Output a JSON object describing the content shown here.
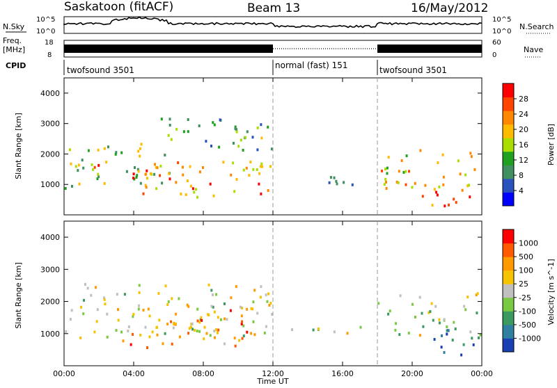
{
  "header": {
    "station": "Saskatoon (fitACF)",
    "beam": "Beam 13",
    "date": "16/May/2012"
  },
  "status_panel": {
    "nsky_label": "N.Sky",
    "nsearch_label": "N.Search",
    "noise_ticks": [
      "10^5",
      "10^0"
    ],
    "freq_label_line1": "Freq.",
    "freq_label_line2": "[MHz]",
    "freq_ticks": [
      "18",
      "8"
    ],
    "nave_label": "Nave",
    "nave_ticks": [
      "60",
      "0"
    ],
    "cpid_label": "CPID",
    "cpid_segments": [
      {
        "name": "twofsound 3501",
        "start_hour": 0,
        "end_hour": 12
      },
      {
        "name": "normal (fast) 151",
        "start_hour": 12,
        "end_hour": 18
      },
      {
        "name": "twofsound 3501",
        "start_hour": 18,
        "end_hour": 24
      }
    ]
  },
  "chart_data": [
    {
      "type": "heatmap",
      "title": "",
      "xlabel": "",
      "ylabel": "Slant Range [km]",
      "xlim": [
        0,
        24
      ],
      "ylim": [
        0,
        4500
      ],
      "yticks": [
        1000,
        2000,
        3000,
        4000
      ],
      "xticks_hours": [
        0,
        4,
        8,
        12,
        16,
        20,
        24
      ],
      "colorbar": {
        "label": "Power [dB]",
        "ticks": [
          "28",
          "24",
          "20",
          "16",
          "12",
          "8",
          "4"
        ],
        "colors": [
          "#0000ff",
          "#2a52be",
          "#3f8f5f",
          "#1fa01f",
          "#aadd00",
          "#ffbb00",
          "#ff8800",
          "#ff4400",
          "#ff0000"
        ]
      },
      "echo_regions": [
        {
          "x0": 0.0,
          "x1": 6.0,
          "r0": 900,
          "r1": 2400,
          "level": 0.45
        },
        {
          "x0": 0.5,
          "x1": 5.8,
          "r0": 1200,
          "r1": 1700,
          "level": 0.75
        },
        {
          "x0": 4.0,
          "x1": 12.0,
          "r0": 600,
          "r1": 1800,
          "level": 0.7
        },
        {
          "x0": 5.5,
          "x1": 12.0,
          "r0": 2000,
          "r1": 3200,
          "level": 0.35
        },
        {
          "x0": 13.0,
          "x1": 18.0,
          "r0": 1000,
          "r1": 1300,
          "level": 0.3
        },
        {
          "x0": 18.0,
          "x1": 24.0,
          "r0": 900,
          "r1": 2200,
          "level": 0.6
        },
        {
          "x0": 20.5,
          "x1": 23.5,
          "r0": 300,
          "r1": 1100,
          "level": 0.85
        }
      ]
    },
    {
      "type": "heatmap",
      "title": "",
      "xlabel": "Time UT",
      "ylabel": "Slant Range [km]",
      "xlim": [
        0,
        24
      ],
      "ylim": [
        0,
        4500
      ],
      "yticks": [
        1000,
        2000,
        3000,
        4000
      ],
      "xtick_labels": [
        "00:00",
        "04:00",
        "08:00",
        "12:00",
        "16:00",
        "20:00",
        "00:00"
      ],
      "colorbar": {
        "label": "Velocity [m s^-1]",
        "ticks": [
          "1000",
          "500",
          "100",
          "25",
          "-25",
          "-100",
          "-500",
          "-1000"
        ],
        "colors": [
          "#1a3fb0",
          "#2f7fa0",
          "#3a9a60",
          "#7ac943",
          "#c0c0c0",
          "#f7c200",
          "#ff9a00",
          "#ff5a00",
          "#ff0000"
        ]
      },
      "echo_regions": [
        {
          "x0": 0.0,
          "x1": 12.0,
          "r0": 900,
          "r1": 2600,
          "level": 0.5
        },
        {
          "x0": 3.0,
          "x1": 10.5,
          "r0": 600,
          "r1": 2000,
          "level": 0.7
        },
        {
          "x0": 13.0,
          "x1": 18.0,
          "r0": 1000,
          "r1": 1300,
          "level": 0.5
        },
        {
          "x0": 18.0,
          "x1": 24.0,
          "r0": 900,
          "r1": 2300,
          "level": 0.45
        },
        {
          "x0": 21.0,
          "x1": 23.8,
          "r0": 300,
          "r1": 1200,
          "level": 0.15
        }
      ]
    }
  ]
}
